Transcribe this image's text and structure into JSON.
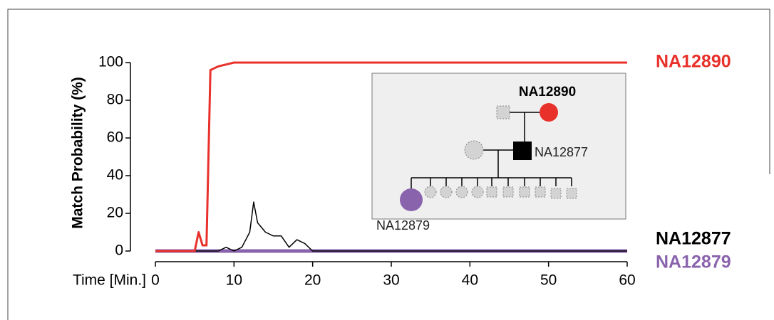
{
  "chart_data": {
    "type": "line",
    "ylabel": "Match Probability (%)",
    "xlabel": "Time [Min.]",
    "x": [
      0,
      5,
      5.5,
      6,
      6.5,
      7,
      7.5,
      8,
      9,
      10,
      11,
      12,
      12.5,
      13,
      14,
      15,
      16,
      17,
      18,
      19,
      20,
      21,
      30,
      34,
      40,
      50,
      60
    ],
    "series": [
      {
        "name": "NA12890",
        "color": "#e8312b",
        "values": [
          0,
          0,
          10,
          3,
          3,
          96,
          97,
          98,
          99,
          100,
          100,
          100,
          100,
          100,
          100,
          100,
          100,
          100,
          100,
          100,
          100,
          100,
          100,
          100,
          100,
          100,
          100
        ]
      },
      {
        "name": "NA12877",
        "color": "#000000",
        "values": [
          0,
          0,
          0,
          0,
          0,
          0,
          0,
          0,
          2,
          0,
          2,
          10,
          26,
          15,
          10,
          8,
          8,
          2,
          6,
          4,
          0,
          0,
          0,
          0,
          0,
          0,
          0
        ]
      },
      {
        "name": "NA12879",
        "color": "#8a63ad",
        "values": [
          0,
          0,
          0,
          0,
          0,
          0,
          0,
          0,
          0,
          0,
          0,
          0,
          0,
          0,
          0,
          0,
          0,
          0,
          0,
          0,
          0,
          0,
          0,
          0,
          0,
          0,
          0
        ]
      }
    ],
    "xlim": [
      0,
      60
    ],
    "xticks": [
      0,
      10,
      20,
      30,
      40,
      50,
      60
    ],
    "ylim": [
      0,
      100
    ],
    "yticks": [
      0,
      20,
      40,
      60,
      80,
      100
    ],
    "inset": {
      "labels": [
        "NA12890",
        "NA12877",
        "NA12879"
      ]
    }
  }
}
